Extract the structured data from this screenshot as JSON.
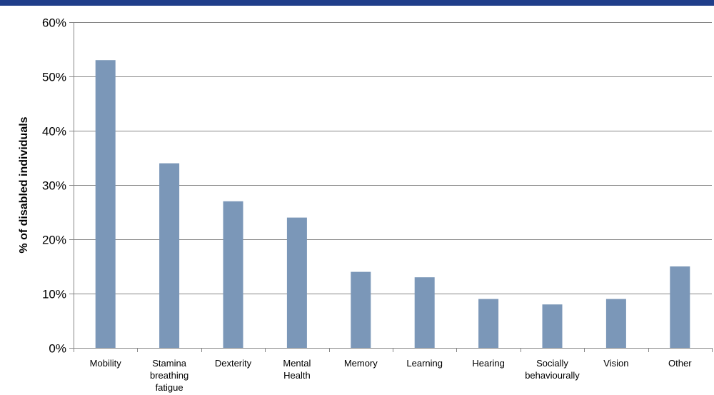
{
  "chart_data": {
    "type": "bar",
    "title": "",
    "xlabel": "",
    "ylabel": "% of disabled individuals",
    "categories": [
      "Mobility",
      "Stamina breathing fatigue",
      "Dexterity",
      "Mental Health",
      "Memory",
      "Learning",
      "Hearing",
      "Socially behaviourally",
      "Vision",
      "Other"
    ],
    "category_lines": [
      [
        "Mobility"
      ],
      [
        "Stamina",
        "breathing",
        "fatigue"
      ],
      [
        "Dexterity"
      ],
      [
        "Mental",
        "Health"
      ],
      [
        "Memory"
      ],
      [
        "Learning"
      ],
      [
        "Hearing"
      ],
      [
        "Socially",
        "behaviourally"
      ],
      [
        "Vision"
      ],
      [
        "Other"
      ]
    ],
    "values": [
      0.53,
      0.34,
      0.27,
      0.24,
      0.14,
      0.13,
      0.09,
      0.08,
      0.09,
      0.15
    ],
    "ylim": [
      0,
      0.6
    ],
    "yticks": [
      "0%",
      "10%",
      "20%",
      "30%",
      "40%",
      "50%",
      "60%"
    ],
    "grid": true,
    "legend": "none",
    "bar_color": "#7b97b8",
    "header_color": "#1f3e8a"
  }
}
